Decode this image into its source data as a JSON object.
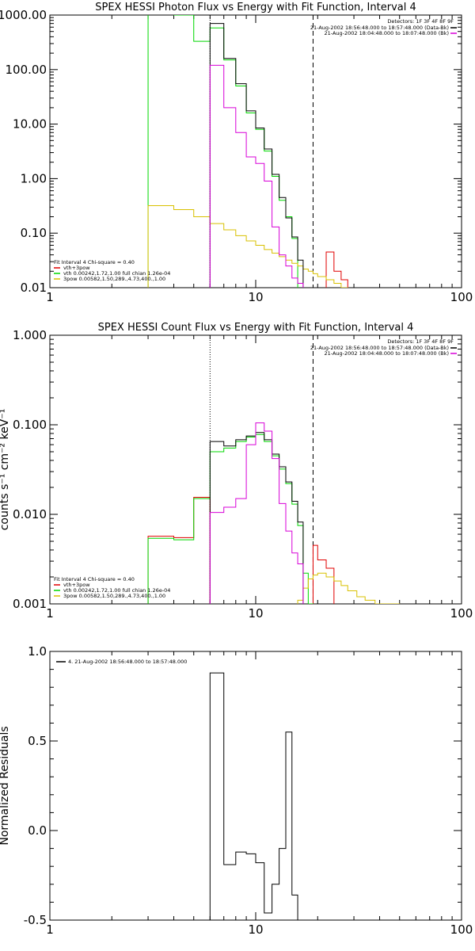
{
  "colors": {
    "total": "#000000",
    "vth_3pow": "#e00000",
    "vth": "#00d800",
    "3pow": "#d8c000",
    "bk": "#d800d8"
  },
  "chart_data": [
    {
      "type": "line",
      "title": "SPEX HESSI Photon Flux vs Energy with Fit Function, Interval 4",
      "xlabel": "",
      "ylabel": "",
      "x_scale": "log",
      "y_scale": "log",
      "xlim": [
        1,
        100
      ],
      "ylim": [
        0.01,
        1000
      ],
      "x_ticks": [
        "1",
        "10",
        "100"
      ],
      "y_ticks": [
        "0.01",
        "0.10",
        "1.00",
        "10.00",
        "100.00",
        "1000.00"
      ],
      "vlines": [
        {
          "x": 6,
          "style": "dotted"
        },
        {
          "x": 19,
          "style": "dashed"
        }
      ],
      "edges": [
        3,
        4,
        5,
        6,
        7,
        8,
        9,
        10,
        11,
        12,
        13,
        14,
        15,
        16,
        17,
        18,
        19,
        20,
        22,
        24,
        26,
        28,
        31,
        34
      ],
      "series": [
        {
          "name": "vth+3pow",
          "color_key": "vth_3pow",
          "values": [
            null,
            null,
            null,
            null,
            null,
            null,
            null,
            null,
            null,
            null,
            null,
            null,
            null,
            null,
            null,
            null,
            null,
            null,
            0.045,
            0.02,
            0.014,
            null,
            null
          ]
        },
        {
          "name": "vth 0.00242,1.72,1.00 full chian 1.26e-04",
          "color_key": "vth",
          "values": [
            5000,
            1000,
            330,
            580,
            150,
            50,
            16,
            8,
            3.2,
            1.1,
            0.4,
            0.2,
            0.08,
            0.003,
            null,
            null,
            null,
            null,
            null,
            null,
            null,
            null,
            null
          ]
        },
        {
          "name": "3pow 0.00582,1.50,289.,4.73,400.,1.00",
          "color_key": "3pow",
          "values": [
            0.32,
            0.27,
            0.2,
            0.15,
            0.115,
            0.09,
            0.072,
            0.06,
            0.05,
            0.043,
            0.037,
            0.032,
            0.028,
            0.025,
            0.022,
            0.02,
            0.018,
            0.016,
            0.014,
            0.012,
            0.01,
            0.0088,
            0.0075
          ]
        },
        {
          "name": "Total",
          "color_key": "total",
          "values": [
            null,
            null,
            null,
            700,
            160,
            55,
            17.5,
            8.5,
            3.5,
            1.2,
            0.45,
            0.19,
            0.085,
            0.032,
            null,
            null,
            null,
            null,
            null,
            null,
            null,
            null,
            null
          ]
        },
        {
          "name": "Bk",
          "color_key": "bk",
          "values": [
            null,
            null,
            null,
            120,
            20,
            7,
            2.5,
            1.9,
            0.9,
            0.13,
            0.04,
            0.025,
            0.015,
            0.012,
            null,
            null,
            null,
            null,
            null,
            null,
            null,
            null,
            null
          ]
        }
      ],
      "legend": {
        "header": "Fit Interval 4   Chi-square = 0.40",
        "items": [
          {
            "label": "vth+3pow",
            "color_key": "vth_3pow"
          },
          {
            "label": "vth 0.00242,1.72,1.00  full chian 1.26e-04",
            "color_key": "vth"
          },
          {
            "label": "3pow 0.00582,1.50,289.,4.73,400.,1.00",
            "color_key": "3pow"
          }
        ],
        "placement": "bottom-left"
      },
      "info": {
        "detectors": "Detectors: 1F 3F 4F 8F 9F",
        "lines": [
          {
            "text": "21-Aug-2002 18:56:48.000 to 18:57:48.000 (Data-Bk)",
            "color_key": "total"
          },
          {
            "text": "21-Aug-2002 18:04:48.000 to 18:07:48.000 (Bk)",
            "color_key": "bk"
          }
        ],
        "placement": "top-right"
      }
    },
    {
      "type": "line",
      "title": "SPEX HESSI Count Flux vs Energy with Fit Function, Interval 4",
      "xlabel": "",
      "ylabel": "counts s⁻¹ cm⁻² keV⁻¹",
      "x_scale": "log",
      "y_scale": "log",
      "xlim": [
        1,
        100
      ],
      "ylim": [
        0.001,
        1
      ],
      "x_ticks": [
        "1",
        "10",
        "100"
      ],
      "y_ticks": [
        "0.001",
        "0.010",
        "0.100",
        "1.000"
      ],
      "vlines": [
        {
          "x": 6,
          "style": "dotted"
        },
        {
          "x": 19,
          "style": "dashed"
        }
      ],
      "edges": [
        3,
        4,
        5,
        6,
        7,
        8,
        9,
        10,
        11,
        12,
        13,
        14,
        15,
        16,
        17,
        18,
        19,
        20,
        22,
        24,
        26,
        28,
        31,
        34,
        38,
        42,
        46,
        50
      ],
      "series": [
        {
          "name": "vth+3pow",
          "color_key": "vth_3pow",
          "values": [
            0.0057,
            0.0055,
            0.0155,
            null,
            null,
            null,
            null,
            null,
            null,
            null,
            null,
            null,
            null,
            null,
            null,
            null,
            0.0045,
            0.0031,
            0.0025,
            null,
            null,
            null,
            null,
            null,
            null,
            null,
            null
          ]
        },
        {
          "name": "vth 0.00242,1.72,1.00  full chian 1.26e-04",
          "color_key": "vth",
          "values": [
            0.0054,
            0.0052,
            0.015,
            0.05,
            0.055,
            0.065,
            0.073,
            0.078,
            0.065,
            0.045,
            0.032,
            0.022,
            0.013,
            0.0075,
            0.0022,
            0.001,
            null,
            null,
            null,
            null,
            null,
            null,
            null,
            null,
            null,
            null,
            null
          ]
        },
        {
          "name": "3pow 0.00582,1.50,289.,4.73,400.,1.00",
          "color_key": "3pow",
          "values": [
            null,
            null,
            null,
            null,
            null,
            null,
            null,
            null,
            null,
            null,
            null,
            null,
            null,
            0.0011,
            0.0015,
            0.0019,
            0.0021,
            0.0022,
            0.002,
            0.0018,
            0.0016,
            0.0014,
            0.0012,
            0.0011,
            0.001,
            0.001,
            0.001
          ]
        },
        {
          "name": "Total",
          "color_key": "total",
          "values": [
            null,
            null,
            null,
            0.065,
            0.058,
            0.068,
            0.075,
            0.082,
            0.068,
            0.047,
            0.034,
            0.023,
            0.014,
            0.0082,
            null,
            null,
            null,
            null,
            null,
            null,
            null,
            null,
            null,
            null,
            null,
            null,
            null
          ]
        },
        {
          "name": "Bk",
          "color_key": "bk",
          "values": [
            null,
            null,
            null,
            0.0105,
            0.012,
            0.015,
            0.06,
            0.105,
            0.085,
            0.042,
            0.0132,
            0.0065,
            0.0037,
            0.0028,
            null,
            null,
            null,
            null,
            null,
            null,
            null,
            null,
            null,
            null,
            null,
            null,
            null
          ]
        }
      ],
      "legend": {
        "header": "Fit Interval 4   Chi-square = 0.40",
        "items": [
          {
            "label": "vth+3pow",
            "color_key": "vth_3pow"
          },
          {
            "label": "vth 0.00242,1.72,1.00  full chian 1.26e-04",
            "color_key": "vth"
          },
          {
            "label": "3pow 0.00582,1.50,289.,4.73,400.,1.00",
            "color_key": "3pow"
          }
        ],
        "placement": "bottom-left"
      },
      "info": {
        "detectors": "Detectors: 1F 3F 4F 8F 9F",
        "lines": [
          {
            "text": "21-Aug-2002 18:56:48.000 to 18:57:48.000 (Data-Bk)",
            "color_key": "total"
          },
          {
            "text": "21-Aug-2002 18:04:48.000 to 18:07:48.000 (Bk)",
            "color_key": "bk"
          }
        ],
        "placement": "top-right"
      }
    },
    {
      "type": "line",
      "title": "",
      "xlabel": "",
      "ylabel": "Normalized Residuals",
      "x_scale": "log",
      "y_scale": "linear",
      "xlim": [
        1,
        100
      ],
      "ylim": [
        -0.5,
        1.0
      ],
      "x_ticks": [
        "1",
        "10",
        "100"
      ],
      "y_ticks": [
        "-0.5",
        "0.0",
        "0.5",
        "1.0"
      ],
      "edges": [
        6,
        7,
        8,
        9,
        10,
        11,
        12,
        13,
        14,
        15,
        16,
        17,
        18,
        19
      ],
      "series": [
        {
          "name": "4. 21-Aug-2002 18:56:48.000 to 18:57:48.000",
          "color_key": "total",
          "values": [
            0.88,
            -0.19,
            -0.12,
            -0.13,
            -0.18,
            -0.46,
            -0.3,
            -0.1,
            0.55,
            -0.36,
            null,
            null,
            null
          ]
        }
      ],
      "legend": {
        "items": [
          {
            "label": "4. 21-Aug-2002 18:56:48.000 to 18:57:48.000",
            "color_key": "total"
          }
        ],
        "placement": "top-left"
      }
    }
  ]
}
